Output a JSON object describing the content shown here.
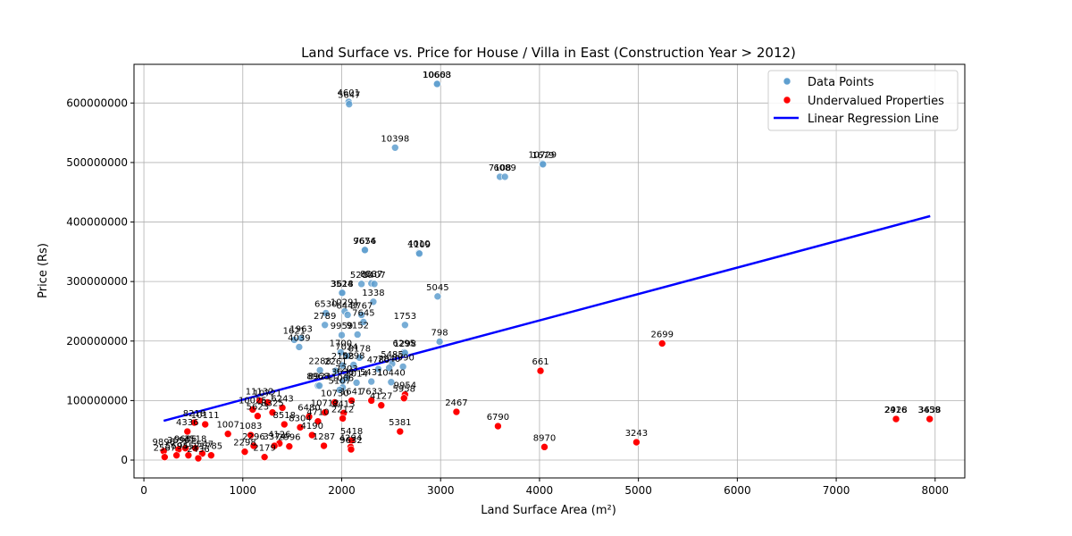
{
  "chart_data": {
    "type": "scatter",
    "title": "Land Surface vs. Price for House / Villa in East (Construction Year > 2012)",
    "xlabel": "Land Surface Area (m²)",
    "ylabel": "Price (Rs)",
    "xlim": [
      -100,
      8300
    ],
    "ylim": [
      -30000000,
      665000000
    ],
    "xticks": [
      0,
      1000,
      2000,
      3000,
      4000,
      5000,
      6000,
      7000,
      8000
    ],
    "yticks": [
      0,
      100000000,
      200000000,
      300000000,
      400000000,
      500000000,
      600000000
    ],
    "grid": true,
    "legend_position": "top-right",
    "colors": {
      "data": "#5f9fcf",
      "undervalued": "#ff0000",
      "regression": "#0000ff"
    },
    "legend": [
      "Data Points",
      "Undervalued Properties",
      "Linear Regression Line"
    ],
    "series": [
      {
        "name": "Data Points",
        "points": [
          {
            "x": 2960,
            "y": 632000000,
            "label": "10668"
          },
          {
            "x": 2965,
            "y": 632000000,
            "label": "10603"
          },
          {
            "x": 2070,
            "y": 602000000,
            "label": "4601"
          },
          {
            "x": 2075,
            "y": 598000000,
            "label": "5647"
          },
          {
            "x": 2540,
            "y": 525000000,
            "label": "10398"
          },
          {
            "x": 4030,
            "y": 498000000,
            "label": "10729"
          },
          {
            "x": 4035,
            "y": 497000000,
            "label": "1679"
          },
          {
            "x": 3600,
            "y": 476000000,
            "label": "7108"
          },
          {
            "x": 3650,
            "y": 476000000,
            "label": "6089"
          },
          {
            "x": 2230,
            "y": 353000000,
            "label": "9674"
          },
          {
            "x": 2235,
            "y": 353000000,
            "label": "7656"
          },
          {
            "x": 2780,
            "y": 348000000,
            "label": "4010"
          },
          {
            "x": 2785,
            "y": 347000000,
            "label": "1109"
          },
          {
            "x": 2300,
            "y": 297000000,
            "label": "8537"
          },
          {
            "x": 2200,
            "y": 296000000,
            "label": "5200"
          },
          {
            "x": 2330,
            "y": 296000000,
            "label": "5407"
          },
          {
            "x": 2000,
            "y": 281000000,
            "label": "3524"
          },
          {
            "x": 2005,
            "y": 281000000,
            "label": "3618"
          },
          {
            "x": 2970,
            "y": 275000000,
            "label": "5045"
          },
          {
            "x": 2320,
            "y": 266000000,
            "label": "1338"
          },
          {
            "x": 2030,
            "y": 250000000,
            "label": "10291"
          },
          {
            "x": 1840,
            "y": 247000000,
            "label": "6530"
          },
          {
            "x": 2060,
            "y": 244000000,
            "label": "6447"
          },
          {
            "x": 2200,
            "y": 244000000,
            "label": "3767"
          },
          {
            "x": 2640,
            "y": 227000000,
            "label": "1753"
          },
          {
            "x": 1830,
            "y": 227000000,
            "label": "2789"
          },
          {
            "x": 2220,
            "y": 232000000,
            "label": "7645"
          },
          {
            "x": 2000,
            "y": 210000000,
            "label": "9959"
          },
          {
            "x": 2160,
            "y": 211000000,
            "label": "9152"
          },
          {
            "x": 1590,
            "y": 205000000,
            "label": "1963"
          },
          {
            "x": 1520,
            "y": 202000000,
            "label": "1621"
          },
          {
            "x": 1570,
            "y": 190000000,
            "label": "4039"
          },
          {
            "x": 2990,
            "y": 199000000,
            "label": "798"
          },
          {
            "x": 2630,
            "y": 181000000,
            "label": "6295"
          },
          {
            "x": 2640,
            "y": 180000000,
            "label": "1298"
          },
          {
            "x": 1990,
            "y": 181000000,
            "label": "1700"
          },
          {
            "x": 2050,
            "y": 175000000,
            "label": "7024"
          },
          {
            "x": 2180,
            "y": 172000000,
            "label": "8178"
          },
          {
            "x": 1780,
            "y": 151000000,
            "label": "2288"
          },
          {
            "x": 1940,
            "y": 150000000,
            "label": "2261"
          },
          {
            "x": 2010,
            "y": 159000000,
            "label": "2108"
          },
          {
            "x": 2120,
            "y": 160000000,
            "label": "5298"
          },
          {
            "x": 2510,
            "y": 162000000,
            "label": "5485"
          },
          {
            "x": 2620,
            "y": 157000000,
            "label": "8990"
          },
          {
            "x": 2370,
            "y": 153000000,
            "label": "4780"
          },
          {
            "x": 2480,
            "y": 155000000,
            "label": "7840"
          },
          {
            "x": 1760,
            "y": 125000000,
            "label": "8968"
          },
          {
            "x": 1775,
            "y": 125000000,
            "label": "8923"
          },
          {
            "x": 2010,
            "y": 133000000,
            "label": "3638"
          },
          {
            "x": 2050,
            "y": 138000000,
            "label": "7203"
          },
          {
            "x": 2150,
            "y": 130000000,
            "label": "1014"
          },
          {
            "x": 2300,
            "y": 132000000,
            "label": "5431"
          },
          {
            "x": 2500,
            "y": 131000000,
            "label": "10440"
          },
          {
            "x": 2010,
            "y": 122000000,
            "label": "1065"
          },
          {
            "x": 1980,
            "y": 118000000,
            "label": "5107"
          }
        ]
      },
      {
        "name": "Undervalued Properties",
        "points": [
          {
            "x": 5240,
            "y": 196000000,
            "label": "2699"
          },
          {
            "x": 4010,
            "y": 150000000,
            "label": "661"
          },
          {
            "x": 3160,
            "y": 81000000,
            "label": "2467"
          },
          {
            "x": 3580,
            "y": 57000000,
            "label": "6790"
          },
          {
            "x": 4050,
            "y": 22000000,
            "label": "8970"
          },
          {
            "x": 4980,
            "y": 30000000,
            "label": "3243"
          },
          {
            "x": 7600,
            "y": 69000000,
            "label": "2416"
          },
          {
            "x": 7605,
            "y": 69000000,
            "label": "2928"
          },
          {
            "x": 7940,
            "y": 69000000,
            "label": "3459"
          },
          {
            "x": 7945,
            "y": 69000000,
            "label": "3638"
          },
          {
            "x": 2590,
            "y": 48000000,
            "label": "5381"
          },
          {
            "x": 2640,
            "y": 110000000,
            "label": "9954"
          },
          {
            "x": 2630,
            "y": 104000000,
            "label": "5958"
          },
          {
            "x": 2400,
            "y": 92000000,
            "label": "4127"
          },
          {
            "x": 2300,
            "y": 100000000,
            "label": "7633"
          },
          {
            "x": 2100,
            "y": 100000000,
            "label": "1641"
          },
          {
            "x": 2020,
            "y": 79000000,
            "label": "8413"
          },
          {
            "x": 2010,
            "y": 70000000,
            "label": "2212"
          },
          {
            "x": 2100,
            "y": 33000000,
            "label": "5418"
          },
          {
            "x": 2090,
            "y": 22000000,
            "label": "4294"
          },
          {
            "x": 2095,
            "y": 18000000,
            "label": "9632"
          },
          {
            "x": 1820,
            "y": 24000000,
            "label": "1287"
          },
          {
            "x": 1700,
            "y": 42000000,
            "label": "4190"
          },
          {
            "x": 1760,
            "y": 65000000,
            "label": "4710"
          },
          {
            "x": 1830,
            "y": 80000000,
            "label": "10712"
          },
          {
            "x": 1930,
            "y": 97000000,
            "label": "10730"
          },
          {
            "x": 1670,
            "y": 73000000,
            "label": "6480"
          },
          {
            "x": 1580,
            "y": 55000000,
            "label": "8304"
          },
          {
            "x": 1420,
            "y": 60000000,
            "label": "8518"
          },
          {
            "x": 1470,
            "y": 23000000,
            "label": "2996"
          },
          {
            "x": 1370,
            "y": 28000000,
            "label": "4126"
          },
          {
            "x": 1320,
            "y": 24000000,
            "label": "3374"
          },
          {
            "x": 1220,
            "y": 5000000,
            "label": "2179"
          },
          {
            "x": 1110,
            "y": 24000000,
            "label": "2296"
          },
          {
            "x": 1080,
            "y": 42000000,
            "label": "1083"
          },
          {
            "x": 1020,
            "y": 14000000,
            "label": "2298"
          },
          {
            "x": 1170,
            "y": 100000000,
            "label": "11132"
          },
          {
            "x": 1250,
            "y": 97000000,
            "label": "10721"
          },
          {
            "x": 1100,
            "y": 85000000,
            "label": "10025"
          },
          {
            "x": 1150,
            "y": 74000000,
            "label": "5623"
          },
          {
            "x": 1300,
            "y": 80000000,
            "label": "8325"
          },
          {
            "x": 1400,
            "y": 88000000,
            "label": "6243"
          },
          {
            "x": 850,
            "y": 44000000,
            "label": "1007"
          },
          {
            "x": 510,
            "y": 63000000,
            "label": "8218"
          },
          {
            "x": 620,
            "y": 60000000,
            "label": "10111"
          },
          {
            "x": 440,
            "y": 48000000,
            "label": "4336"
          },
          {
            "x": 680,
            "y": 8000000,
            "label": "1785"
          },
          {
            "x": 590,
            "y": 11000000,
            "label": "5547"
          },
          {
            "x": 350,
            "y": 18000000,
            "label": "3696"
          },
          {
            "x": 450,
            "y": 8000000,
            "label": "9552"
          },
          {
            "x": 550,
            "y": 3000000,
            "label": "2436"
          },
          {
            "x": 200,
            "y": 15000000,
            "label": "9896"
          },
          {
            "x": 210,
            "y": 5000000,
            "label": "2567"
          },
          {
            "x": 330,
            "y": 8000000,
            "label": "5694"
          },
          {
            "x": 420,
            "y": 20000000,
            "label": "9686"
          },
          {
            "x": 520,
            "y": 20000000,
            "label": "3518"
          }
        ]
      },
      {
        "name": "Linear Regression Line",
        "line": [
          [
            200,
            66000000
          ],
          [
            7950,
            410000000
          ]
        ]
      }
    ]
  }
}
